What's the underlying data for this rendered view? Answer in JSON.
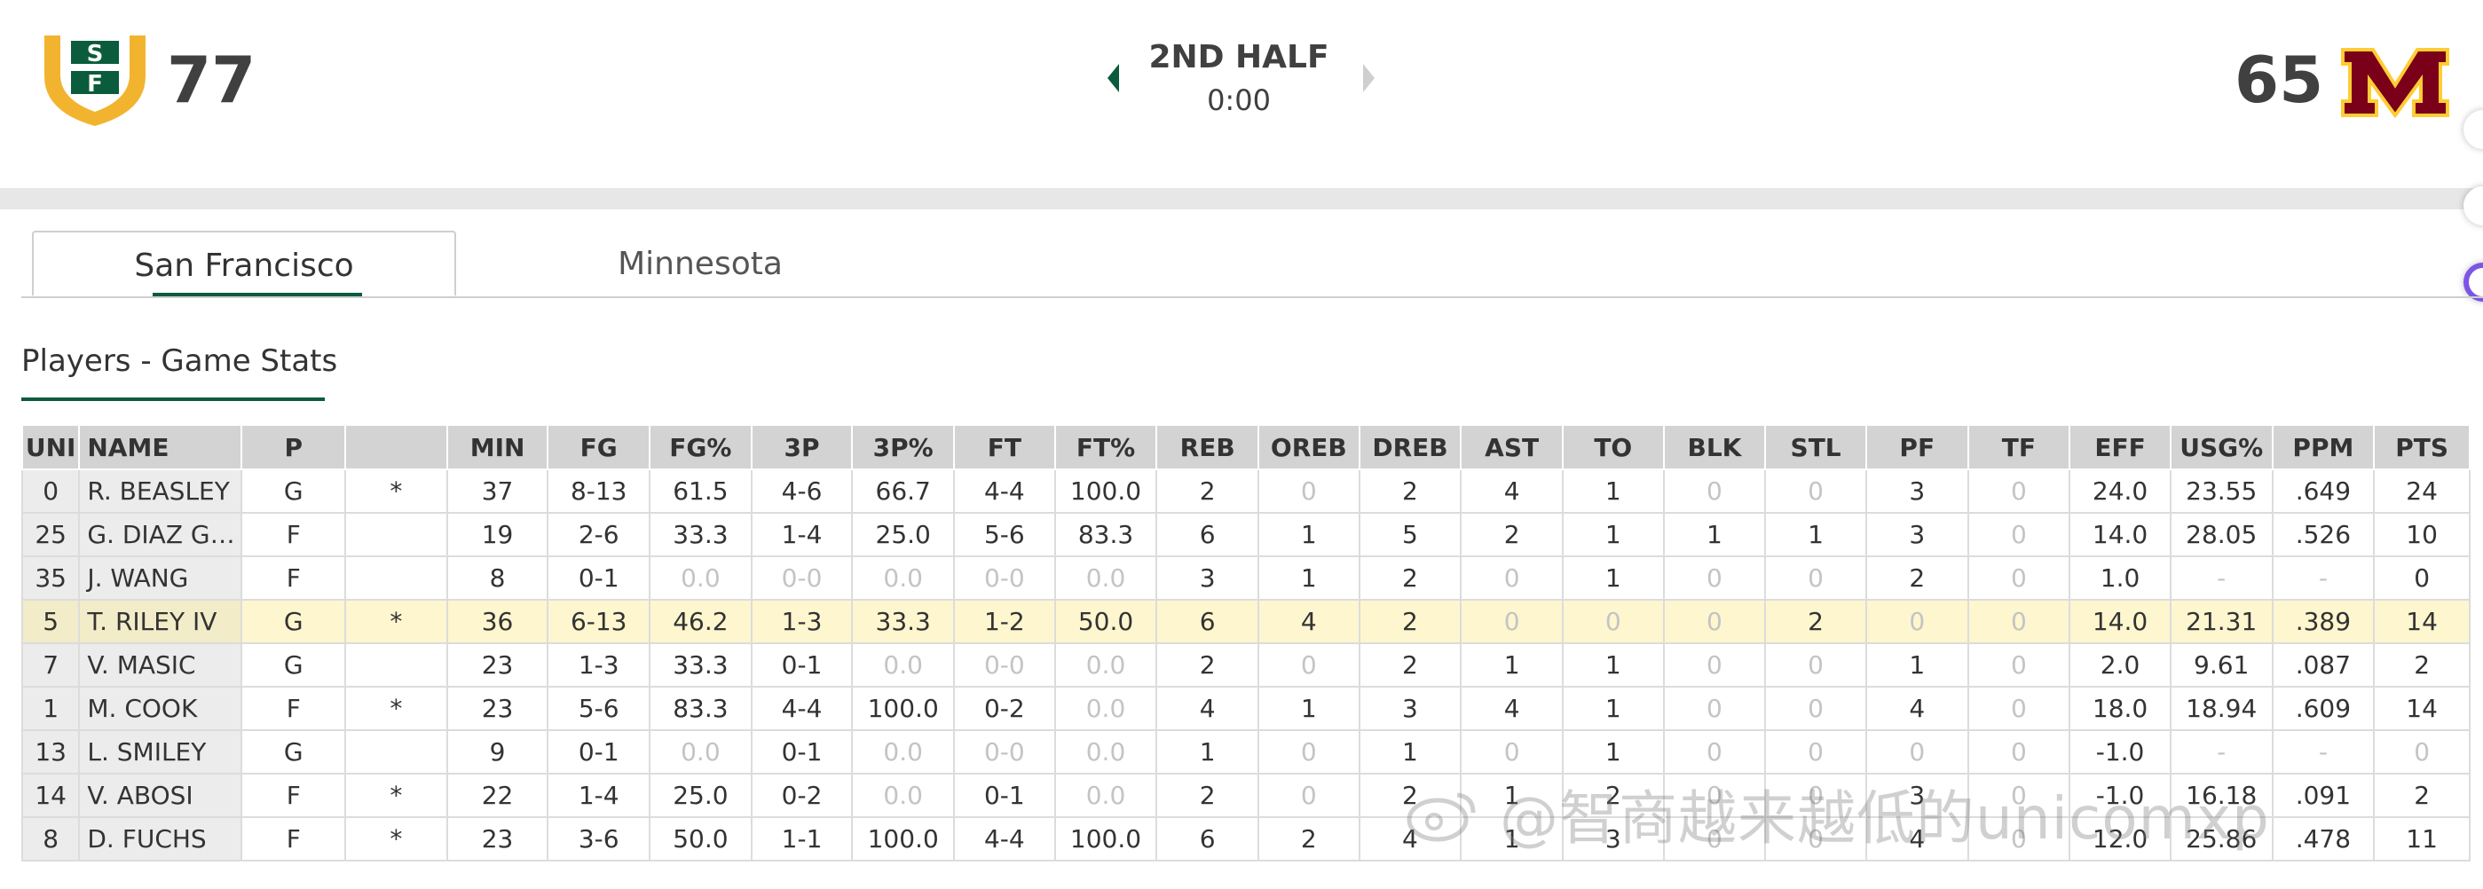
{
  "scoreboard": {
    "home": {
      "logo_text": "SF",
      "score": "77"
    },
    "away": {
      "logo_text": "M",
      "score": "65"
    },
    "period": "2ND HALF",
    "clock": "0:00"
  },
  "colors": {
    "usf_green": "#0a5c3c",
    "usf_gold": "#f2b42f",
    "minnesota_maroon": "#7a0019",
    "minnesota_gold": "#ffcc33",
    "highlight_row": "#fdf6cf"
  },
  "tabs": [
    {
      "label": "San Francisco",
      "active": true
    },
    {
      "label": "Minnesota",
      "active": false
    }
  ],
  "section_title": "Players - Game Stats",
  "table": {
    "columns": [
      "UNI",
      "NAME",
      "P",
      "",
      "MIN",
      "FG",
      "FG%",
      "3P",
      "3P%",
      "FT",
      "FT%",
      "REB",
      "OREB",
      "DREB",
      "AST",
      "TO",
      "BLK",
      "STL",
      "PF",
      "TF",
      "EFF",
      "USG%",
      "PPM",
      "PTS"
    ],
    "rows": [
      {
        "cells": [
          "0",
          "R. BEASLEY",
          "G",
          "*",
          "37",
          "8-13",
          "61.5",
          "4-6",
          "66.7",
          "4-4",
          "100.0",
          "2",
          "0",
          "2",
          "4",
          "1",
          "0",
          "0",
          "3",
          "0",
          "24.0",
          "23.55",
          ".649",
          "24"
        ],
        "muted": [
          12,
          16,
          17,
          19
        ],
        "highlight": false
      },
      {
        "cells": [
          "25",
          "G. DIAZ GR...",
          "F",
          "",
          "19",
          "2-6",
          "33.3",
          "1-4",
          "25.0",
          "5-6",
          "83.3",
          "6",
          "1",
          "5",
          "2",
          "1",
          "1",
          "1",
          "3",
          "0",
          "14.0",
          "28.05",
          ".526",
          "10"
        ],
        "muted": [
          19
        ],
        "highlight": false
      },
      {
        "cells": [
          "35",
          "J. WANG",
          "F",
          "",
          "8",
          "0-1",
          "0.0",
          "0-0",
          "0.0",
          "0-0",
          "0.0",
          "3",
          "1",
          "2",
          "0",
          "1",
          "0",
          "0",
          "2",
          "0",
          "1.0",
          "-",
          "-",
          "0"
        ],
        "muted": [
          6,
          7,
          8,
          9,
          10,
          14,
          16,
          17,
          19,
          21,
          22
        ],
        "highlight": false
      },
      {
        "cells": [
          "5",
          "T. RILEY IV",
          "G",
          "*",
          "36",
          "6-13",
          "46.2",
          "1-3",
          "33.3",
          "1-2",
          "50.0",
          "6",
          "4",
          "2",
          "0",
          "0",
          "0",
          "2",
          "0",
          "0",
          "14.0",
          "21.31",
          ".389",
          "14"
        ],
        "muted": [
          14,
          15,
          16,
          18,
          19
        ],
        "highlight": true
      },
      {
        "cells": [
          "7",
          "V. MASIC",
          "G",
          "",
          "23",
          "1-3",
          "33.3",
          "0-1",
          "0.0",
          "0-0",
          "0.0",
          "2",
          "0",
          "2",
          "1",
          "1",
          "0",
          "0",
          "1",
          "0",
          "2.0",
          "9.61",
          ".087",
          "2"
        ],
        "muted": [
          8,
          9,
          10,
          12,
          16,
          17,
          19
        ],
        "highlight": false
      },
      {
        "cells": [
          "1",
          "M. COOK",
          "F",
          "*",
          "23",
          "5-6",
          "83.3",
          "4-4",
          "100.0",
          "0-2",
          "0.0",
          "4",
          "1",
          "3",
          "4",
          "1",
          "0",
          "0",
          "4",
          "0",
          "18.0",
          "18.94",
          ".609",
          "14"
        ],
        "muted": [
          10,
          16,
          17,
          19
        ],
        "highlight": false
      },
      {
        "cells": [
          "13",
          "L. SMILEY",
          "G",
          "",
          "9",
          "0-1",
          "0.0",
          "0-1",
          "0.0",
          "0-0",
          "0.0",
          "1",
          "0",
          "1",
          "0",
          "1",
          "0",
          "0",
          "0",
          "0",
          "-1.0",
          "-",
          "-",
          "0"
        ],
        "muted": [
          6,
          8,
          9,
          10,
          12,
          14,
          16,
          17,
          18,
          19,
          21,
          22,
          23
        ],
        "highlight": false
      },
      {
        "cells": [
          "14",
          "V. ABOSI",
          "F",
          "*",
          "22",
          "1-4",
          "25.0",
          "0-2",
          "0.0",
          "0-1",
          "0.0",
          "2",
          "0",
          "2",
          "1",
          "2",
          "0",
          "0",
          "3",
          "0",
          "-1.0",
          "16.18",
          ".091",
          "2"
        ],
        "muted": [
          8,
          10,
          12,
          16,
          17,
          19
        ],
        "highlight": false
      },
      {
        "cells": [
          "8",
          "D. FUCHS",
          "F",
          "*",
          "23",
          "3-6",
          "50.0",
          "1-1",
          "100.0",
          "4-4",
          "100.0",
          "6",
          "2",
          "4",
          "1",
          "3",
          "0",
          "0",
          "4",
          "0",
          "12.0",
          "25.86",
          ".478",
          "11"
        ],
        "muted": [
          16,
          17,
          19
        ],
        "highlight": false
      }
    ]
  },
  "watermark": "@智商越来越低的unicomxp"
}
